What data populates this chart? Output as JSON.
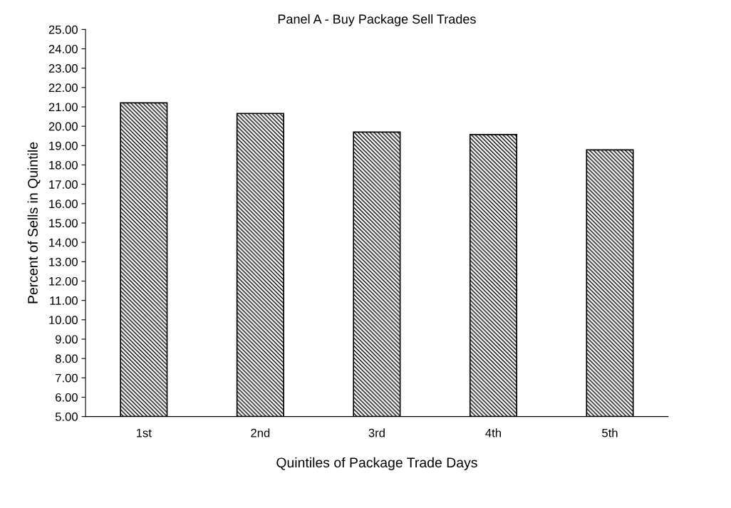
{
  "chart_data": {
    "type": "bar",
    "title": "Panel A - Buy Package Sell Trades",
    "xlabel": "Quintiles of Package Trade Days",
    "ylabel": "Percent of Sells in Quintile",
    "categories": [
      "1st",
      "2nd",
      "3rd",
      "4th",
      "5th"
    ],
    "values": [
      21.21,
      20.66,
      19.7,
      19.57,
      18.78
    ],
    "color": "#000000",
    "ylim": [
      5,
      25
    ],
    "yticks": [
      {
        "value": 5,
        "label": "5.00"
      },
      {
        "value": 6,
        "label": "6.00"
      },
      {
        "value": 7,
        "label": "7.00"
      },
      {
        "value": 8,
        "label": "8.00"
      },
      {
        "value": 9,
        "label": "9.00"
      },
      {
        "value": 10,
        "label": "10.00"
      },
      {
        "value": 11,
        "label": "11.00"
      },
      {
        "value": 12,
        "label": "12.00"
      },
      {
        "value": 13,
        "label": "13.00"
      },
      {
        "value": 14,
        "label": "14.00"
      },
      {
        "value": 15,
        "label": "15.00"
      },
      {
        "value": 16,
        "label": "16.00"
      },
      {
        "value": 17,
        "label": "17.00"
      },
      {
        "value": 18,
        "label": "18.00"
      },
      {
        "value": 19,
        "label": "19.00"
      },
      {
        "value": 20,
        "label": "20.00"
      },
      {
        "value": 21,
        "label": "21.00"
      },
      {
        "value": 22,
        "label": "22.00"
      },
      {
        "value": 23,
        "label": "23.00"
      },
      {
        "value": 24,
        "label": "24.00"
      },
      {
        "value": 25,
        "label": "25.00"
      }
    ],
    "grid": false
  }
}
